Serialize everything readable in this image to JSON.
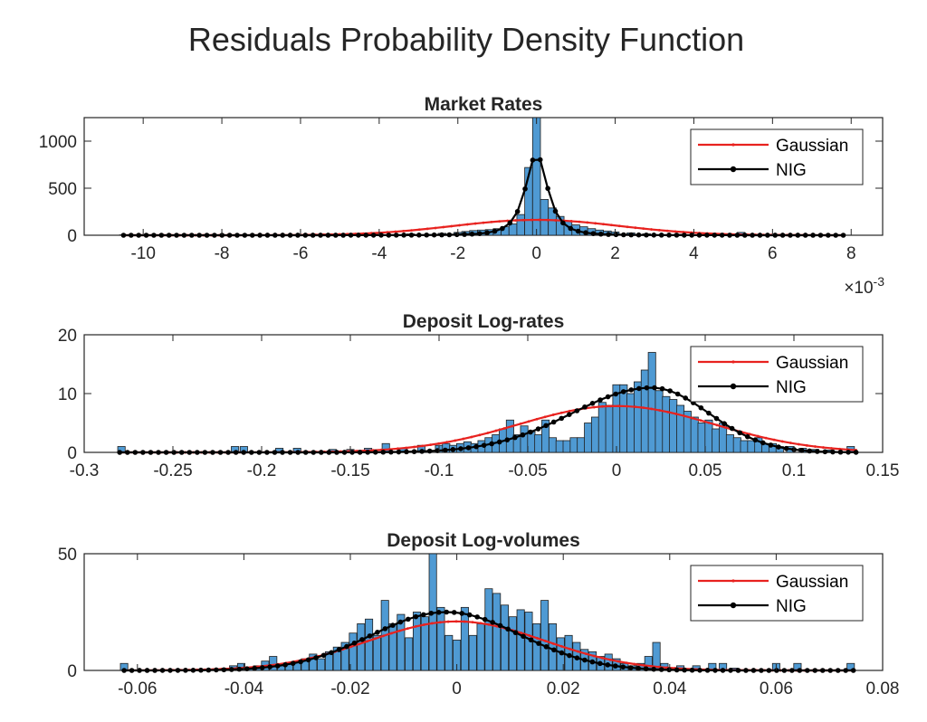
{
  "title": "Residuals Probability Density Function",
  "colors": {
    "bars": "#4f9ad3",
    "gaussian": "#e8221f",
    "nig": "#000000"
  },
  "chart_data": [
    {
      "type": "bar",
      "title": "Market Rates",
      "xlim": [
        -0.0115,
        0.0088
      ],
      "ylim": [
        0,
        1250
      ],
      "xticks": [
        -0.01,
        -0.008,
        -0.006,
        -0.004,
        -0.002,
        0,
        0.002,
        0.004,
        0.006,
        0.008
      ],
      "xtick_labels": [
        "-10",
        "-8",
        "-6",
        "-4",
        "-2",
        "0",
        "2",
        "4",
        "6",
        "8"
      ],
      "yticks": [
        0,
        500,
        1000
      ],
      "ytick_labels": [
        "0",
        "500",
        "1000"
      ],
      "exponent_label": "10",
      "exponent_power": "-3",
      "legend_position": "top-right",
      "gaussian": {
        "name": "Gaussian",
        "mu": 0.0,
        "sigma": 0.0021,
        "range": [
          -0.0105,
          0.0078
        ]
      },
      "nig": {
        "name": "NIG",
        "mu": 0.0,
        "scale": 0.00045,
        "peak": 860,
        "range": [
          -0.0105,
          0.0078
        ]
      },
      "histogram": {
        "bin_width": 0.0002,
        "bins": [
          [
            -0.0105,
            4
          ],
          [
            -0.0072,
            4
          ],
          [
            -0.0054,
            12
          ],
          [
            -0.0049,
            8
          ],
          [
            -0.004,
            10
          ],
          [
            -0.0032,
            14
          ],
          [
            -0.0024,
            20
          ],
          [
            -0.002,
            30
          ],
          [
            -0.0018,
            40
          ],
          [
            -0.0016,
            50
          ],
          [
            -0.0014,
            55
          ],
          [
            -0.0012,
            60
          ],
          [
            -0.001,
            70
          ],
          [
            -0.0008,
            90
          ],
          [
            -0.0006,
            120
          ],
          [
            -0.0004,
            220
          ],
          [
            -0.0002,
            720
          ],
          [
            0.0,
            1250
          ],
          [
            0.0002,
            380
          ],
          [
            0.0004,
            290
          ],
          [
            0.0006,
            200
          ],
          [
            0.0008,
            150
          ],
          [
            0.001,
            110
          ],
          [
            0.0012,
            90
          ],
          [
            0.0014,
            70
          ],
          [
            0.0016,
            55
          ],
          [
            0.0018,
            45
          ],
          [
            0.002,
            35
          ],
          [
            0.0024,
            25
          ],
          [
            0.0028,
            15
          ],
          [
            0.0036,
            10
          ],
          [
            0.0045,
            8
          ],
          [
            0.0052,
            30
          ],
          [
            0.006,
            5
          ],
          [
            0.007,
            4
          ]
        ]
      }
    },
    {
      "type": "bar",
      "title": "Deposit Log-rates",
      "xlim": [
        -0.3,
        0.15
      ],
      "ylim": [
        0,
        20
      ],
      "xticks": [
        -0.3,
        -0.25,
        -0.2,
        -0.15,
        -0.1,
        -0.05,
        0,
        0.05,
        0.1,
        0.15
      ],
      "xtick_labels": [
        "-0.3",
        "-0.25",
        "-0.2",
        "-0.15",
        "-0.1",
        "-0.05",
        "0",
        "0.05",
        "0.1",
        "0.15"
      ],
      "yticks": [
        0,
        10,
        20
      ],
      "ytick_labels": [
        "0",
        "10",
        "20"
      ],
      "legend_position": "top-right",
      "gaussian": {
        "name": "Gaussian",
        "mu": 0.0,
        "sigma": 0.055,
        "range": [
          -0.28,
          0.135
        ]
      },
      "nig": {
        "name": "NIG",
        "mu": 0.02,
        "sigma_left": 0.045,
        "sigma_right": 0.032,
        "peak": 11,
        "range": [
          -0.28,
          0.135
        ]
      },
      "histogram": {
        "bin_width": 0.0042,
        "bins": [
          [
            -0.279,
            1
          ],
          [
            -0.215,
            1
          ],
          [
            -0.21,
            1
          ],
          [
            -0.19,
            0.7
          ],
          [
            -0.18,
            0.7
          ],
          [
            -0.16,
            0.5
          ],
          [
            -0.15,
            0.5
          ],
          [
            -0.14,
            0.7
          ],
          [
            -0.13,
            1.5
          ],
          [
            -0.12,
            0.7
          ],
          [
            -0.11,
            1.2
          ],
          [
            -0.1,
            1.2
          ],
          [
            -0.096,
            1.5
          ],
          [
            -0.092,
            1.2
          ],
          [
            -0.088,
            1.5
          ],
          [
            -0.084,
            1.8
          ],
          [
            -0.08,
            1.5
          ],
          [
            -0.076,
            2
          ],
          [
            -0.072,
            2.5
          ],
          [
            -0.068,
            3
          ],
          [
            -0.064,
            4
          ],
          [
            -0.06,
            5.5
          ],
          [
            -0.056,
            3
          ],
          [
            -0.052,
            4.5
          ],
          [
            -0.048,
            3.5
          ],
          [
            -0.044,
            3
          ],
          [
            -0.04,
            5.5
          ],
          [
            -0.036,
            2.5
          ],
          [
            -0.032,
            2
          ],
          [
            -0.028,
            2
          ],
          [
            -0.024,
            2.5
          ],
          [
            -0.02,
            2.5
          ],
          [
            -0.016,
            5
          ],
          [
            -0.012,
            6
          ],
          [
            -0.008,
            8.5
          ],
          [
            -0.004,
            8
          ],
          [
            0.0,
            11.5
          ],
          [
            0.004,
            11.5
          ],
          [
            0.008,
            10
          ],
          [
            0.012,
            12
          ],
          [
            0.016,
            14
          ],
          [
            0.02,
            17
          ],
          [
            0.024,
            10.5
          ],
          [
            0.028,
            9.5
          ],
          [
            0.032,
            9
          ],
          [
            0.036,
            8
          ],
          [
            0.04,
            7
          ],
          [
            0.044,
            6
          ],
          [
            0.048,
            5
          ],
          [
            0.052,
            5.5
          ],
          [
            0.056,
            4
          ],
          [
            0.06,
            5
          ],
          [
            0.064,
            3
          ],
          [
            0.068,
            2.5
          ],
          [
            0.072,
            2
          ],
          [
            0.076,
            2
          ],
          [
            0.08,
            2.5
          ],
          [
            0.084,
            1.5
          ],
          [
            0.088,
            1.5
          ],
          [
            0.092,
            1
          ],
          [
            0.098,
            1
          ],
          [
            0.105,
            0.7
          ],
          [
            0.112,
            0.5
          ],
          [
            0.12,
            0.4
          ],
          [
            0.132,
            1
          ]
        ]
      }
    },
    {
      "type": "bar",
      "title": "Deposit Log-volumes",
      "xlim": [
        -0.07,
        0.08
      ],
      "ylim": [
        0,
        50
      ],
      "xticks": [
        -0.06,
        -0.04,
        -0.02,
        0,
        0.02,
        0.04,
        0.06,
        0.08
      ],
      "xtick_labels": [
        "-0.06",
        "-0.04",
        "-0.02",
        "0",
        "0.02",
        "0.04",
        "0.06",
        "0.08"
      ],
      "yticks": [
        0,
        50
      ],
      "ytick_labels": [
        "0",
        "50"
      ],
      "legend_position": "top-right",
      "gaussian": {
        "name": "Gaussian",
        "mu": 0.0,
        "sigma": 0.0165,
        "peak": 21,
        "range": [
          -0.0625,
          0.0745
        ]
      },
      "nig": {
        "name": "NIG",
        "mu": -0.002,
        "sigma": 0.014,
        "peak": 25,
        "range": [
          -0.0625,
          0.0745
        ]
      },
      "histogram": {
        "bin_width": 0.0014,
        "bins": [
          [
            -0.0625,
            3
          ],
          [
            -0.0435,
            1
          ],
          [
            -0.042,
            2
          ],
          [
            -0.0405,
            3
          ],
          [
            -0.039,
            1
          ],
          [
            -0.0375,
            2
          ],
          [
            -0.036,
            4
          ],
          [
            -0.0345,
            6
          ],
          [
            -0.033,
            2
          ],
          [
            -0.0315,
            3
          ],
          [
            -0.03,
            4
          ],
          [
            -0.0285,
            5
          ],
          [
            -0.027,
            7
          ],
          [
            -0.0255,
            5
          ],
          [
            -0.024,
            8
          ],
          [
            -0.0225,
            10
          ],
          [
            -0.021,
            12
          ],
          [
            -0.0195,
            16
          ],
          [
            -0.018,
            20
          ],
          [
            -0.0165,
            22
          ],
          [
            -0.015,
            15
          ],
          [
            -0.0135,
            30
          ],
          [
            -0.012,
            20
          ],
          [
            -0.0105,
            24
          ],
          [
            -0.009,
            14
          ],
          [
            -0.0075,
            25
          ],
          [
            -0.006,
            23
          ],
          [
            -0.0045,
            50
          ],
          [
            -0.003,
            27
          ],
          [
            -0.0015,
            15
          ],
          [
            0.0,
            13
          ],
          [
            0.0015,
            27
          ],
          [
            0.003,
            15
          ],
          [
            0.0045,
            20
          ],
          [
            0.006,
            35
          ],
          [
            0.0075,
            33
          ],
          [
            0.009,
            28
          ],
          [
            0.0105,
            23
          ],
          [
            0.012,
            26
          ],
          [
            0.0135,
            25
          ],
          [
            0.015,
            20
          ],
          [
            0.0165,
            30
          ],
          [
            0.018,
            20
          ],
          [
            0.0195,
            14
          ],
          [
            0.021,
            15
          ],
          [
            0.0225,
            12
          ],
          [
            0.024,
            9
          ],
          [
            0.0255,
            8
          ],
          [
            0.027,
            6
          ],
          [
            0.0285,
            7
          ],
          [
            0.03,
            5
          ],
          [
            0.0315,
            3
          ],
          [
            0.033,
            2
          ],
          [
            0.0345,
            3
          ],
          [
            0.036,
            6
          ],
          [
            0.0375,
            12
          ],
          [
            0.039,
            3
          ],
          [
            0.042,
            2
          ],
          [
            0.045,
            2
          ],
          [
            0.048,
            3
          ],
          [
            0.05,
            3
          ],
          [
            0.052,
            1
          ],
          [
            0.06,
            3
          ],
          [
            0.064,
            3
          ],
          [
            0.074,
            3
          ]
        ]
      }
    }
  ]
}
